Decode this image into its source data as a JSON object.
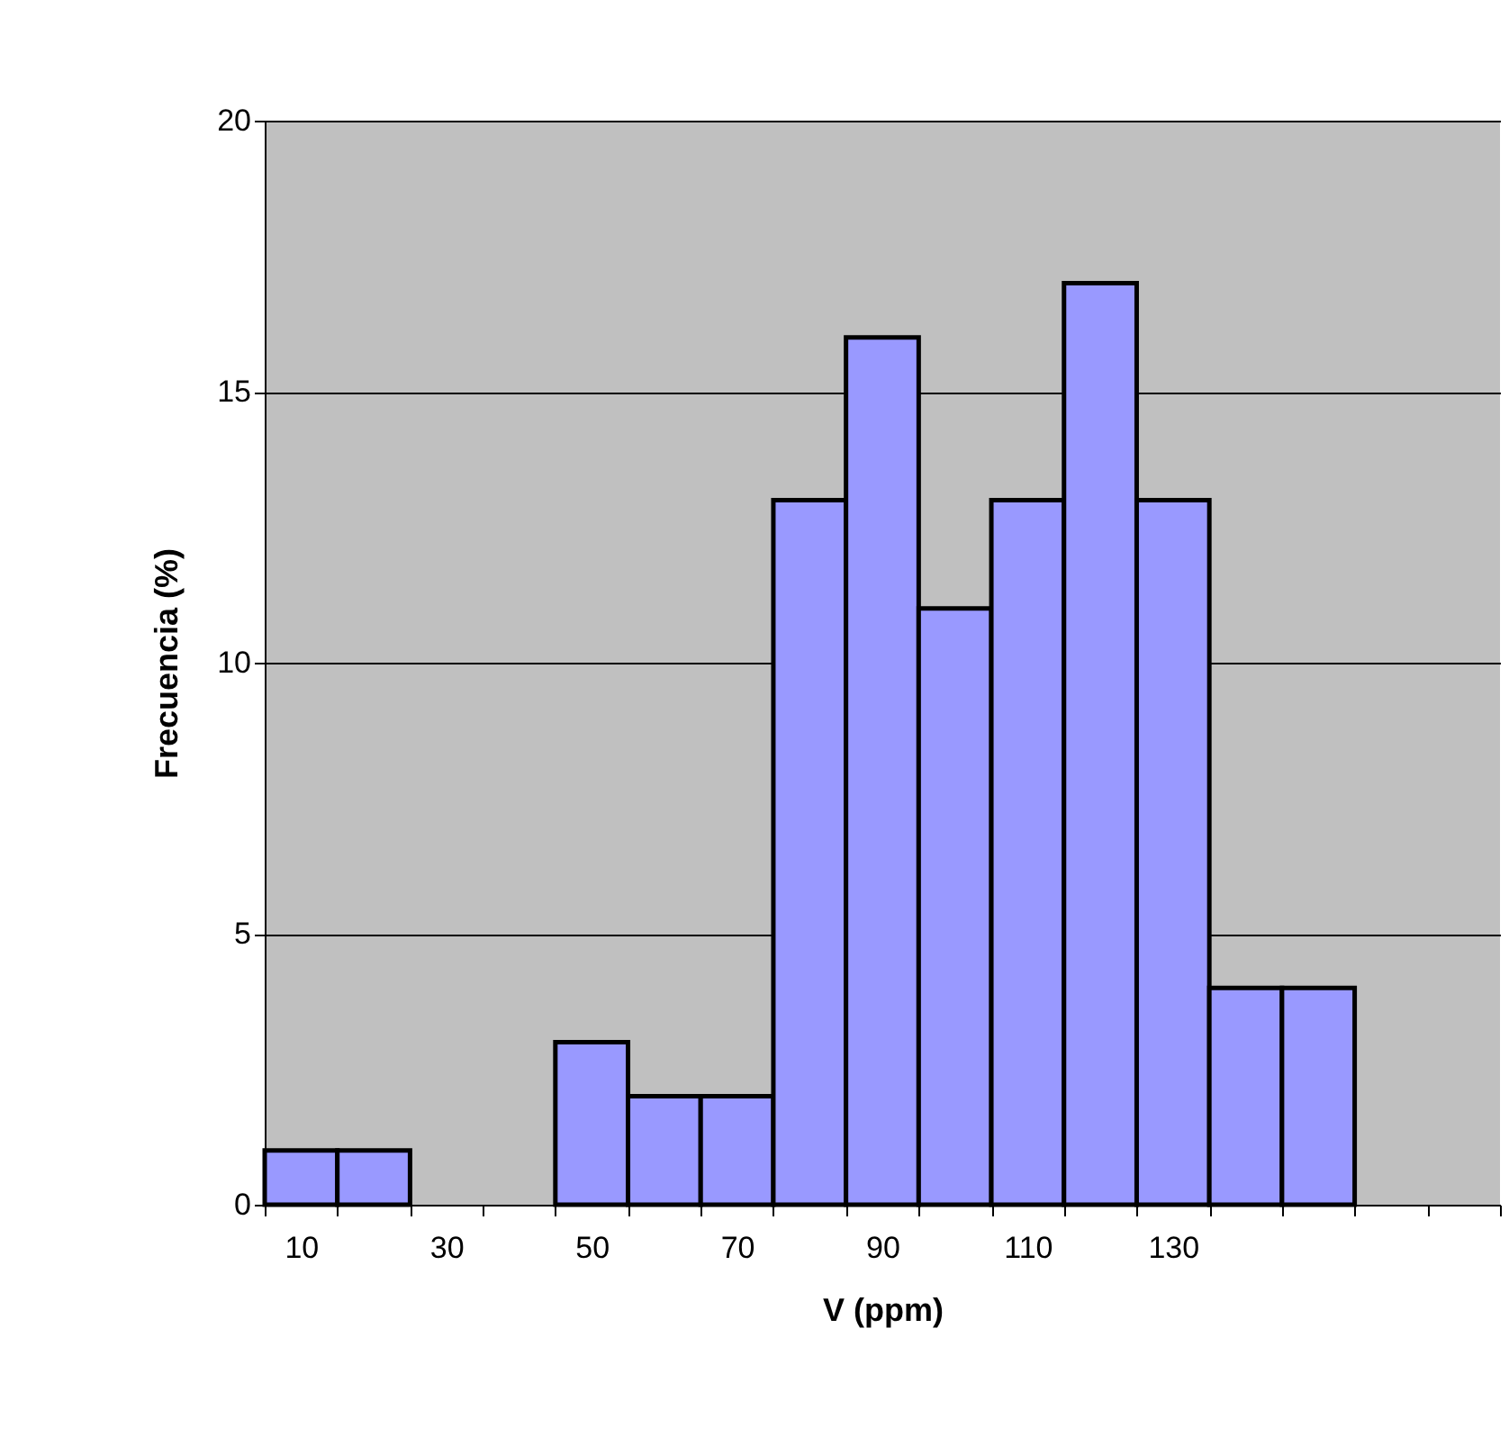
{
  "chart_data": {
    "type": "bar",
    "xlabel": "V (ppm)",
    "ylabel": "Frecuencia (%)",
    "categories": [
      "10",
      null,
      "30",
      null,
      "50",
      null,
      "70",
      null,
      "90",
      null,
      "110",
      null,
      "130",
      null,
      null,
      null,
      null
    ],
    "values": [
      1,
      1,
      null,
      null,
      3,
      2,
      2,
      13,
      16,
      11,
      13,
      17,
      13,
      4,
      4,
      null,
      null
    ],
    "color": "#9999ff",
    "ylim": [
      0,
      20
    ],
    "yticks": [
      0,
      5,
      10,
      15,
      20
    ],
    "grid": "y"
  }
}
